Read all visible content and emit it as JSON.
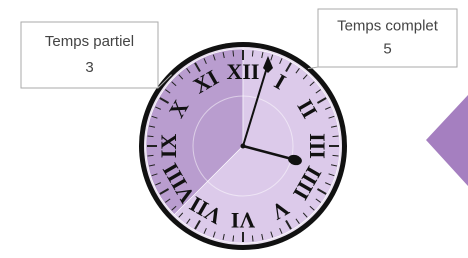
{
  "chart_data": {
    "type": "pie",
    "categories": [
      "Temps partiel",
      "Temps complet"
    ],
    "values": [
      3,
      5
    ],
    "colors": [
      "#b99dcf",
      "#dccaea"
    ]
  },
  "decoration": {
    "numerals": [
      "XII",
      "I",
      "II",
      "III",
      "IIII",
      "V",
      "VI",
      "VII",
      "VIII",
      "IX",
      "X",
      "XI"
    ]
  }
}
